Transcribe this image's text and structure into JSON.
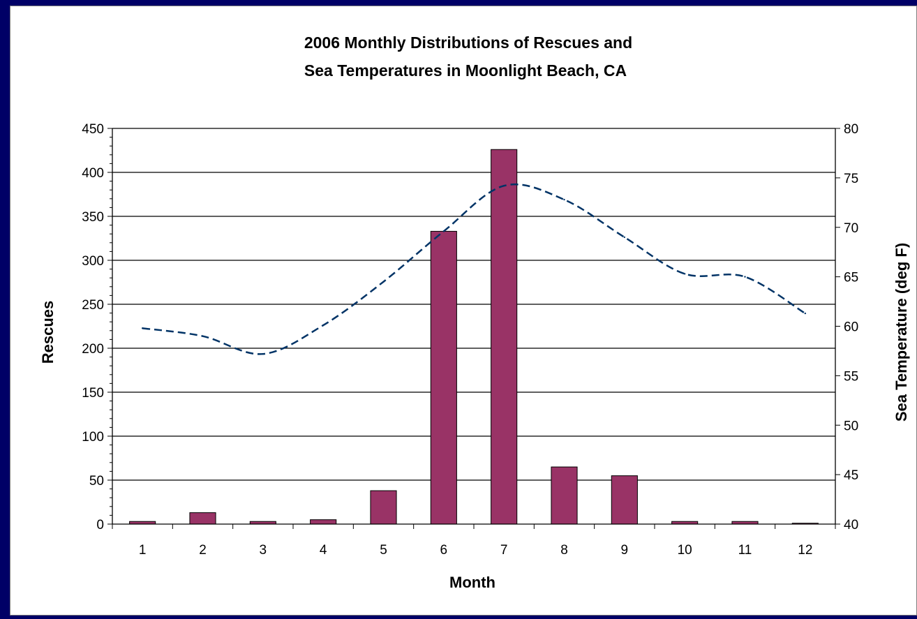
{
  "chart_data": {
    "type": "bar",
    "title_lines": [
      "2006 Monthly Distributions of Rescues and",
      "Sea Temperatures in Moonlight Beach, CA"
    ],
    "xlabel": "Month",
    "ylabel": "Rescues",
    "y2label": "Sea Temperature (deg F)",
    "categories": [
      "1",
      "2",
      "3",
      "4",
      "5",
      "6",
      "7",
      "8",
      "9",
      "10",
      "11",
      "12"
    ],
    "ylim": [
      0,
      450
    ],
    "yticks": [
      "0",
      "50",
      "100",
      "150",
      "200",
      "250",
      "300",
      "350",
      "400",
      "450"
    ],
    "y2lim": [
      40,
      80
    ],
    "y2ticks": [
      "40",
      "45",
      "50",
      "55",
      "60",
      "65",
      "70",
      "75",
      "80"
    ],
    "grid": true,
    "legend": "none",
    "series": [
      {
        "type": "bar",
        "axis": "left",
        "color": "#993366",
        "values": [
          3,
          13,
          3,
          5,
          38,
          333,
          426,
          65,
          55,
          3,
          3,
          1
        ]
      },
      {
        "type": "line",
        "axis": "right",
        "color": "#003366",
        "dashed": true,
        "values": [
          59.8,
          59.0,
          57.2,
          60.1,
          64.5,
          69.6,
          74.2,
          72.8,
          69.0,
          65.3,
          65.0,
          61.3
        ]
      }
    ]
  }
}
